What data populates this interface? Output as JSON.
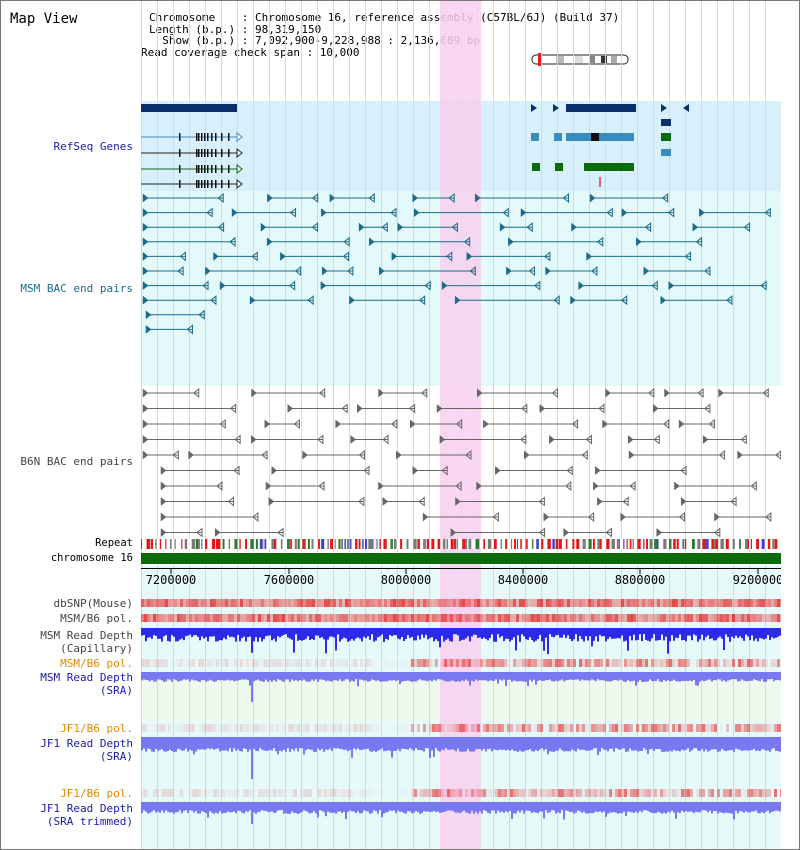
{
  "title": "Map View",
  "info": {
    "chromosome_line": "Chromosome    : Chromosome 16, reference assembly (C57BL/6J) (Build 37)",
    "length_line": "Length (b.p.) : 98,319,150",
    "show_line": "Show (b.p.) : 7,092,900-9,228,988 : 2,136,089 bp",
    "span_line": "Read coverage check span : 10,000"
  },
  "tracks": {
    "refseq": "RefSeq Genes",
    "msm_bac": "MSM BAC end pairs",
    "b6n_bac": "B6N BAC end pairs",
    "repeat": "Repeat",
    "chromosome": "chromosome 16",
    "dbsnp": "dbSNP(Mouse)",
    "msm_b6_pol_1": "MSM/B6 pol.",
    "msm_depth_cap": "MSM Read Depth\n(Capillary)",
    "msm_b6_pol_2": "MSM/B6 pol.",
    "msm_depth_sra": "MSM Read Depth\n(SRA)",
    "jf1_b6_pol_1": "JF1/B6 pol.",
    "jf1_depth_sra": "JF1 Read Depth\n(SRA)",
    "jf1_b6_pol_2": "JF1/B6 pol.",
    "jf1_depth_trim": "JF1 Read Depth\n(SRA trimmed)"
  },
  "axis": {
    "ticks": [
      "7200000",
      "7600000",
      "8000000",
      "8400000",
      "8800000",
      "9200000"
    ]
  },
  "colors": {
    "refseq_bg": "#d8f0fb",
    "bac_bg": "#e4fafa",
    "highlight": "#f8d0f0",
    "refseq_dark": "#0a2f6a",
    "refseq_mid": "#3a8cc0",
    "refseq_green": "#0b6b0b",
    "msm_bac": "#1b6b8a",
    "b6n_bac": "#666666",
    "chromosome_bar": "#0b6b0b",
    "capillary_depth": "#2a2ae8",
    "sra_depth": "#7878f0",
    "label_gray": "#444444",
    "label_teal": "#1b6b8a",
    "label_navy": "#1a1aa8",
    "label_orange": "#e08a00"
  }
}
